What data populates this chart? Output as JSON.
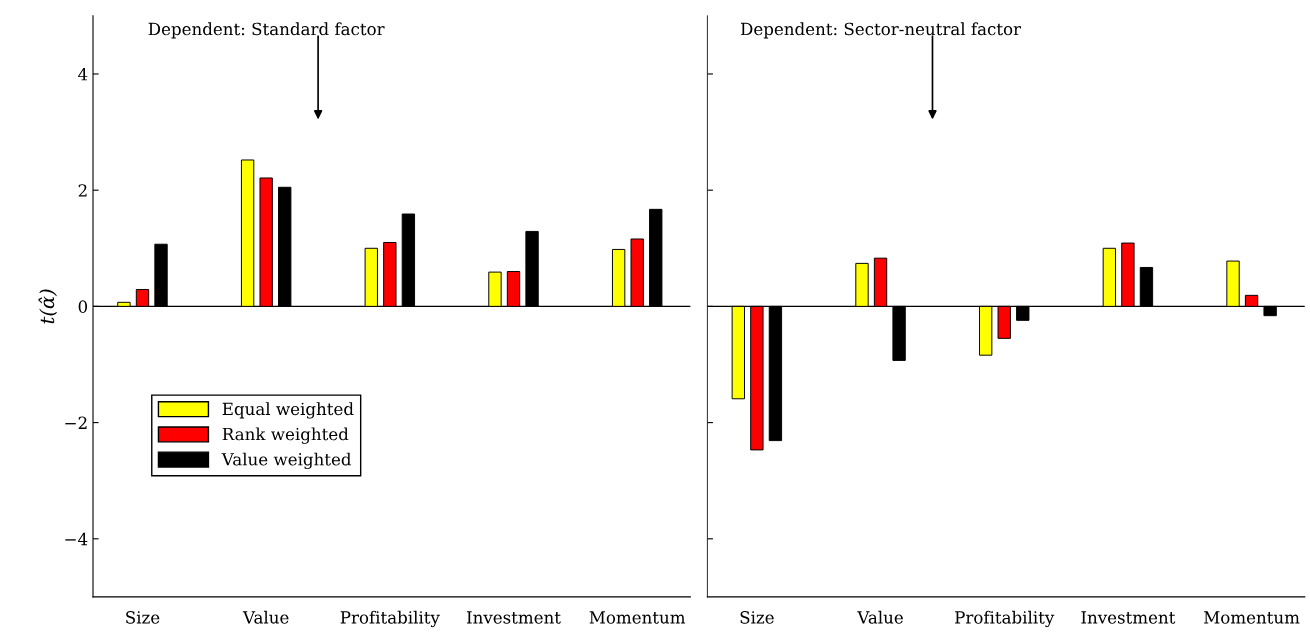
{
  "chart_data": [
    {
      "type": "bar",
      "annotations": [
        "Dependent: Standard factor"
      ],
      "ylabel": "t(α̂)",
      "categories": [
        "Size",
        "Value",
        "Profitability",
        "Investment",
        "Momentum"
      ],
      "series": [
        {
          "name": "Equal weighted",
          "color": "#ffff00",
          "values": [
            0.07,
            2.52,
            1.0,
            0.59,
            0.98
          ]
        },
        {
          "name": "Rank weighted",
          "color": "#ff0000",
          "values": [
            0.29,
            2.21,
            1.1,
            0.6,
            1.16
          ]
        },
        {
          "name": "Value weighted",
          "color": "#000000",
          "values": [
            1.07,
            2.05,
            1.59,
            1.29,
            1.67
          ]
        }
      ],
      "ylim": [
        -5,
        5
      ],
      "yticks": [
        {
          "value": -4,
          "label": "−4"
        },
        {
          "value": -2,
          "label": "−2"
        },
        0,
        2,
        4
      ],
      "ref_lines": [
        {
          "axis": "y",
          "value": 0,
          "color": "#000000"
        }
      ],
      "legend": "bottom left",
      "grid": false
    },
    {
      "type": "bar",
      "annotations": [
        "Dependent: Sector-neutral factor"
      ],
      "categories": [
        "Size",
        "Value",
        "Profitability",
        "Investment",
        "Momentum"
      ],
      "series": [
        {
          "color": "#ffff00",
          "values": [
            -1.59,
            0.74,
            -0.84,
            1.0,
            0.78
          ]
        },
        {
          "color": "#ff0000",
          "values": [
            -2.47,
            0.83,
            -0.55,
            1.09,
            0.19
          ]
        },
        {
          "color": "#000000",
          "values": [
            -2.31,
            -0.93,
            -0.24,
            0.67,
            -0.16
          ]
        }
      ],
      "ylim": [
        -5,
        5
      ],
      "yticks": [
        {
          "value": -4,
          "label": null
        },
        {
          "value": -2,
          "label": null
        },
        {
          "value": 0,
          "label": null
        },
        {
          "value": 2,
          "label": null
        },
        {
          "value": 4,
          "label": null
        }
      ],
      "tick_labels": "x",
      "ref_lines": [
        {
          "axis": "y",
          "value": 0,
          "color": "#000000"
        }
      ],
      "legend": false,
      "grid": false
    }
  ]
}
